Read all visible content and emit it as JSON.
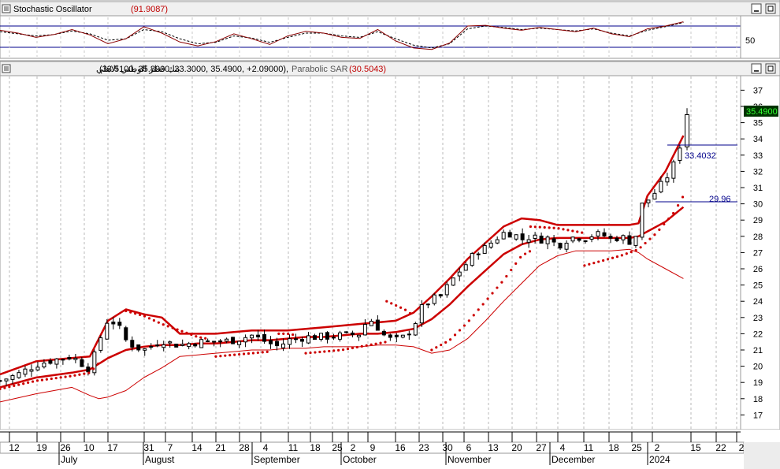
{
  "stochastic_panel": {
    "title": "Stochastic Oscillator",
    "value": "(91.9087)",
    "axis_label": "50",
    "k_color": "#8b0000",
    "d_color": "#000000",
    "band_color": "#00008b"
  },
  "price_panel": {
    "title": "بنك قطر الوطني الاهلي",
    "ohlc": "(33.5100, 35.8900, 33.3000, 35.4900, +2.09000),",
    "indicator": "Parabolic SAR",
    "indicator_value": "(30.5043)",
    "last_price": "35.4900",
    "level_1": "33.4032",
    "level_2": "29.96"
  },
  "time_axis": {
    "day_ticks": [
      "12",
      "19",
      "26",
      "10",
      "17",
      "31",
      "7",
      "14",
      "21",
      "28",
      "4",
      "11",
      "18",
      "25",
      "2",
      "9",
      "16",
      "23",
      "30",
      "6",
      "13",
      "20",
      "27",
      "4",
      "11",
      "18",
      "25",
      "2",
      "15",
      "22",
      "2"
    ],
    "months": [
      "July",
      "August",
      "September",
      "October",
      "November",
      "December",
      "2024"
    ]
  },
  "chart_data": {
    "type": "candlestick",
    "title": "بنك قطر الوطني الاهلي",
    "y_axis_ticks": [
      17,
      18,
      19,
      20,
      21,
      22,
      23,
      24,
      25,
      26,
      27,
      28,
      29,
      30,
      31,
      32,
      33,
      34,
      35,
      36,
      37
    ],
    "ylim": [
      16,
      38
    ],
    "last_close": 35.49,
    "last_bar": {
      "open": 33.51,
      "high": 35.89,
      "low": 33.3,
      "close": 35.49,
      "change": 2.09
    },
    "parabolic_sar": 30.5043,
    "stochastic": 91.9087,
    "annotations": [
      33.4032,
      29.96
    ],
    "price_path": [
      [
        0,
        19.1
      ],
      [
        10,
        19.5
      ],
      [
        20,
        20.1
      ],
      [
        30,
        20.4
      ],
      [
        40,
        20.6
      ],
      [
        50,
        19.8
      ],
      [
        55,
        21.5
      ],
      [
        60,
        22.9
      ],
      [
        65,
        22.6
      ],
      [
        70,
        21.6
      ],
      [
        75,
        21.2
      ],
      [
        80,
        21.0
      ],
      [
        85,
        21.3
      ],
      [
        90,
        21.6
      ],
      [
        95,
        21.4
      ],
      [
        100,
        21.3
      ],
      [
        110,
        21.5
      ],
      [
        120,
        21.5
      ],
      [
        130,
        21.6
      ],
      [
        140,
        21.9
      ],
      [
        150,
        21.4
      ],
      [
        155,
        21.2
      ],
      [
        160,
        21.6
      ],
      [
        170,
        21.8
      ],
      [
        180,
        21.8
      ],
      [
        190,
        21.9
      ],
      [
        200,
        22.0
      ],
      [
        205,
        23.0
      ],
      [
        210,
        22.4
      ],
      [
        215,
        21.7
      ],
      [
        220,
        21.6
      ],
      [
        225,
        21.8
      ],
      [
        230,
        22.5
      ],
      [
        235,
        23.7
      ],
      [
        240,
        24.1
      ],
      [
        245,
        24.3
      ],
      [
        250,
        25.1
      ],
      [
        255,
        25.8
      ],
      [
        260,
        26.4
      ],
      [
        265,
        27.1
      ],
      [
        270,
        27.3
      ],
      [
        275,
        27.8
      ],
      [
        280,
        28.2
      ],
      [
        285,
        28.2
      ],
      [
        290,
        27.8
      ],
      [
        295,
        28.0
      ],
      [
        300,
        27.8
      ],
      [
        305,
        27.9
      ],
      [
        310,
        27.4
      ],
      [
        315,
        27.8
      ],
      [
        320,
        28.0
      ],
      [
        325,
        27.9
      ],
      [
        330,
        28.1
      ],
      [
        335,
        28.1
      ],
      [
        340,
        27.8
      ],
      [
        345,
        28.0
      ],
      [
        350,
        27.7
      ],
      [
        355,
        28.2
      ],
      [
        358,
        30.8
      ],
      [
        360,
        30.2
      ],
      [
        365,
        30.8
      ],
      [
        370,
        31.5
      ],
      [
        375,
        32.5
      ],
      [
        378,
        33.6
      ],
      [
        382,
        35.5
      ]
    ],
    "bollinger": {
      "upper": [
        [
          0,
          19.5
        ],
        [
          20,
          20.3
        ],
        [
          40,
          20.5
        ],
        [
          50,
          20.6
        ],
        [
          60,
          22.8
        ],
        [
          70,
          23.5
        ],
        [
          80,
          23.2
        ],
        [
          90,
          23.0
        ],
        [
          100,
          22.0
        ],
        [
          110,
          22.0
        ],
        [
          120,
          22.0
        ],
        [
          130,
          22.1
        ],
        [
          140,
          22.2
        ],
        [
          150,
          22.2
        ],
        [
          160,
          22.2
        ],
        [
          170,
          22.3
        ],
        [
          180,
          22.4
        ],
        [
          190,
          22.5
        ],
        [
          200,
          22.6
        ],
        [
          210,
          22.7
        ],
        [
          220,
          22.8
        ],
        [
          230,
          23.3
        ],
        [
          240,
          24.3
        ],
        [
          250,
          25.4
        ],
        [
          260,
          26.6
        ],
        [
          270,
          27.6
        ],
        [
          280,
          28.6
        ],
        [
          290,
          29.1
        ],
        [
          300,
          29.0
        ],
        [
          310,
          28.7
        ],
        [
          320,
          28.7
        ],
        [
          330,
          28.7
        ],
        [
          340,
          28.7
        ],
        [
          350,
          28.7
        ],
        [
          355,
          28.8
        ],
        [
          360,
          30.5
        ],
        [
          370,
          32.0
        ],
        [
          380,
          34.2
        ]
      ],
      "middle": [
        [
          0,
          18.7
        ],
        [
          20,
          19.3
        ],
        [
          40,
          19.6
        ],
        [
          50,
          19.8
        ],
        [
          60,
          20.5
        ],
        [
          70,
          21.0
        ],
        [
          80,
          21.2
        ],
        [
          90,
          21.3
        ],
        [
          100,
          21.3
        ],
        [
          110,
          21.4
        ],
        [
          120,
          21.4
        ],
        [
          130,
          21.5
        ],
        [
          140,
          21.6
        ],
        [
          150,
          21.6
        ],
        [
          160,
          21.7
        ],
        [
          170,
          21.8
        ],
        [
          180,
          21.8
        ],
        [
          190,
          21.9
        ],
        [
          200,
          22.0
        ],
        [
          210,
          22.0
        ],
        [
          220,
          22.1
        ],
        [
          230,
          22.3
        ],
        [
          240,
          22.9
        ],
        [
          250,
          23.8
        ],
        [
          260,
          24.9
        ],
        [
          270,
          25.9
        ],
        [
          280,
          26.9
        ],
        [
          290,
          27.5
        ],
        [
          300,
          27.8
        ],
        [
          310,
          27.9
        ],
        [
          320,
          27.9
        ],
        [
          330,
          27.9
        ],
        [
          340,
          27.9
        ],
        [
          350,
          27.9
        ],
        [
          355,
          28.0
        ],
        [
          360,
          28.3
        ],
        [
          370,
          28.9
        ],
        [
          380,
          29.8
        ]
      ],
      "lower": [
        [
          0,
          17.8
        ],
        [
          20,
          18.3
        ],
        [
          40,
          18.7
        ],
        [
          50,
          18.2
        ],
        [
          55,
          18.0
        ],
        [
          60,
          18.1
        ],
        [
          70,
          18.5
        ],
        [
          80,
          19.3
        ],
        [
          90,
          19.9
        ],
        [
          100,
          20.6
        ],
        [
          110,
          20.7
        ],
        [
          120,
          20.8
        ],
        [
          130,
          20.9
        ],
        [
          140,
          21.0
        ],
        [
          150,
          21.0
        ],
        [
          160,
          21.1
        ],
        [
          170,
          21.1
        ],
        [
          180,
          21.2
        ],
        [
          190,
          21.2
        ],
        [
          200,
          21.2
        ],
        [
          210,
          21.3
        ],
        [
          220,
          21.3
        ],
        [
          230,
          21.2
        ],
        [
          240,
          20.8
        ],
        [
          250,
          21.0
        ],
        [
          260,
          21.7
        ],
        [
          270,
          22.8
        ],
        [
          280,
          24.0
        ],
        [
          290,
          25.1
        ],
        [
          300,
          26.2
        ],
        [
          310,
          26.8
        ],
        [
          320,
          27.1
        ],
        [
          330,
          27.1
        ],
        [
          340,
          27.1
        ],
        [
          350,
          27.2
        ],
        [
          355,
          27.0
        ],
        [
          360,
          26.6
        ],
        [
          370,
          26.0
        ],
        [
          380,
          25.4
        ]
      ]
    },
    "sar_segments": [
      [
        [
          0,
          18.6
        ],
        [
          20,
          19.1
        ],
        [
          40,
          19.4
        ],
        [
          50,
          19.6
        ],
        [
          55,
          20.2
        ]
      ],
      [
        [
          70,
          23.4
        ],
        [
          80,
          23.1
        ],
        [
          90,
          22.6
        ],
        [
          100,
          22.2
        ],
        [
          110,
          21.8
        ],
        [
          115,
          21.7
        ]
      ],
      [
        [
          120,
          20.6
        ],
        [
          130,
          20.7
        ],
        [
          140,
          20.8
        ],
        [
          150,
          20.9
        ]
      ],
      [
        [
          155,
          22.0
        ],
        [
          160,
          22.0
        ],
        [
          165,
          21.9
        ]
      ],
      [
        [
          170,
          20.8
        ],
        [
          180,
          20.9
        ],
        [
          190,
          21.0
        ],
        [
          200,
          21.2
        ],
        [
          210,
          21.4
        ],
        [
          215,
          21.5
        ]
      ],
      [
        [
          215,
          24.0
        ],
        [
          225,
          23.5
        ],
        [
          230,
          23.1
        ]
      ],
      [
        [
          240,
          21.0
        ],
        [
          250,
          21.6
        ],
        [
          260,
          22.7
        ],
        [
          270,
          24.0
        ],
        [
          280,
          25.3
        ],
        [
          290,
          26.8
        ],
        [
          295,
          27.1
        ]
      ],
      [
        [
          295,
          28.6
        ],
        [
          310,
          28.5
        ],
        [
          320,
          28.3
        ],
        [
          325,
          28.2
        ]
      ],
      [
        [
          325,
          26.2
        ],
        [
          335,
          26.5
        ],
        [
          345,
          26.8
        ],
        [
          355,
          27.2
        ],
        [
          365,
          28.2
        ],
        [
          375,
          29.5
        ],
        [
          380,
          30.5
        ]
      ]
    ],
    "stochastic_series": {
      "k": [
        [
          0,
          68
        ],
        [
          10,
          60
        ],
        [
          20,
          48
        ],
        [
          30,
          56
        ],
        [
          40,
          70
        ],
        [
          50,
          55
        ],
        [
          60,
          30
        ],
        [
          70,
          44
        ],
        [
          80,
          78
        ],
        [
          90,
          60
        ],
        [
          100,
          35
        ],
        [
          110,
          24
        ],
        [
          120,
          36
        ],
        [
          130,
          58
        ],
        [
          140,
          44
        ],
        [
          150,
          28
        ],
        [
          160,
          52
        ],
        [
          170,
          65
        ],
        [
          180,
          60
        ],
        [
          190,
          48
        ],
        [
          200,
          45
        ],
        [
          210,
          70
        ],
        [
          220,
          38
        ],
        [
          230,
          18
        ],
        [
          240,
          14
        ],
        [
          250,
          32
        ],
        [
          260,
          80
        ],
        [
          270,
          82
        ],
        [
          280,
          74
        ],
        [
          290,
          68
        ],
        [
          300,
          76
        ],
        [
          310,
          70
        ],
        [
          320,
          64
        ],
        [
          330,
          74
        ],
        [
          340,
          58
        ],
        [
          350,
          50
        ],
        [
          360,
          72
        ],
        [
          370,
          80
        ],
        [
          380,
          92
        ]
      ],
      "d": [
        [
          0,
          64
        ],
        [
          10,
          58
        ],
        [
          20,
          52
        ],
        [
          30,
          56
        ],
        [
          40,
          66
        ],
        [
          50,
          58
        ],
        [
          60,
          40
        ],
        [
          70,
          44
        ],
        [
          80,
          70
        ],
        [
          90,
          64
        ],
        [
          100,
          44
        ],
        [
          110,
          30
        ],
        [
          120,
          34
        ],
        [
          130,
          52
        ],
        [
          140,
          46
        ],
        [
          150,
          34
        ],
        [
          160,
          48
        ],
        [
          170,
          60
        ],
        [
          180,
          60
        ],
        [
          190,
          52
        ],
        [
          200,
          48
        ],
        [
          210,
          64
        ],
        [
          220,
          44
        ],
        [
          230,
          26
        ],
        [
          240,
          18
        ],
        [
          250,
          30
        ],
        [
          260,
          72
        ],
        [
          270,
          80
        ],
        [
          280,
          76
        ],
        [
          290,
          70
        ],
        [
          300,
          74
        ],
        [
          310,
          70
        ],
        [
          320,
          66
        ],
        [
          330,
          72
        ],
        [
          340,
          60
        ],
        [
          350,
          52
        ],
        [
          360,
          68
        ],
        [
          370,
          78
        ],
        [
          380,
          90
        ]
      ],
      "upper_band": 80,
      "lower_band": 20
    }
  }
}
